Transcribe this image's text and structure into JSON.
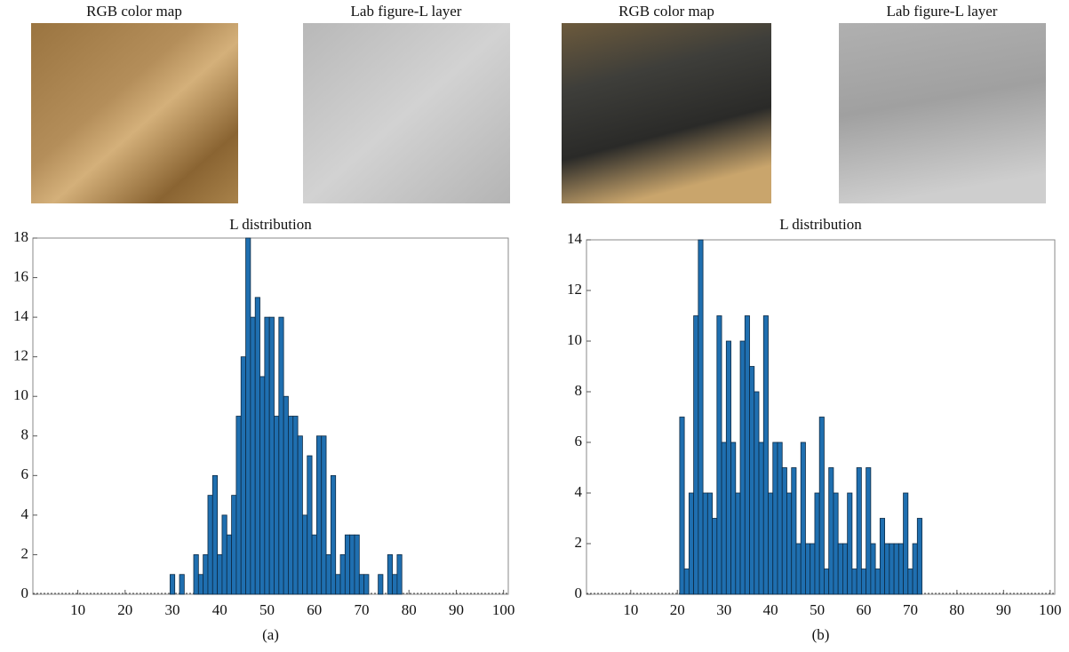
{
  "chart_data": [
    {
      "type": "histogram",
      "title": "L distribution",
      "caption": "(a)",
      "image_titles": [
        "RGB color map",
        "Lab figure-L layer"
      ],
      "bins": [
        29.5,
        30.5,
        31.5,
        32.5,
        33.5,
        34.5,
        35.5,
        36.5,
        37.5,
        38.5,
        39.5,
        40.5,
        41.5,
        42.5,
        43.5,
        44.5,
        45.5,
        46.5,
        47.5,
        48.5,
        49.5,
        50.5,
        51.5,
        52.5,
        53.5,
        54.5,
        55.5,
        56.5,
        57.5,
        58.5,
        59.5,
        60.5,
        61.5,
        62.5,
        63.5,
        64.5,
        65.5,
        66.5,
        67.5,
        68.5,
        69.5,
        70.5,
        71.5,
        72.5,
        73.5,
        74.5,
        75.5,
        76.5,
        77.5,
        78.5
      ],
      "counts": [
        1,
        0,
        1,
        0,
        0,
        2,
        1,
        2,
        5,
        6,
        2,
        4,
        3,
        5,
        9,
        12,
        18,
        14,
        15,
        11,
        14,
        14,
        9,
        14,
        10,
        9,
        9,
        8,
        4,
        7,
        3,
        8,
        8,
        2,
        6,
        1,
        2,
        3,
        3,
        3,
        1,
        1,
        0,
        0,
        1,
        0,
        2,
        1,
        2
      ],
      "color": "#1f6fb0",
      "xlim": [
        0.5,
        101
      ],
      "xticks": [
        10,
        20,
        30,
        40,
        50,
        60,
        70,
        80,
        90,
        100
      ],
      "ylim": [
        0,
        18
      ],
      "yticks": [
        0,
        2,
        4,
        6,
        8,
        10,
        12,
        14,
        16,
        18
      ]
    },
    {
      "type": "histogram",
      "title": "L distribution",
      "caption": "(b)",
      "image_titles": [
        "RGB color map",
        "Lab figure-L layer"
      ],
      "bins": [
        20.5,
        21.5,
        22.5,
        23.5,
        24.5,
        25.5,
        26.5,
        27.5,
        28.5,
        29.5,
        30.5,
        31.5,
        32.5,
        33.5,
        34.5,
        35.5,
        36.5,
        37.5,
        38.5,
        39.5,
        40.5,
        41.5,
        42.5,
        43.5,
        44.5,
        45.5,
        46.5,
        47.5,
        48.5,
        49.5,
        50.5,
        51.5,
        52.5,
        53.5,
        54.5,
        55.5,
        56.5,
        57.5,
        58.5,
        59.5,
        60.5,
        61.5,
        62.5,
        63.5,
        64.5,
        65.5,
        66.5,
        67.5,
        68.5,
        69.5,
        70.5,
        71.5,
        72.5
      ],
      "counts": [
        7,
        1,
        4,
        11,
        14,
        4,
        4,
        3,
        11,
        6,
        10,
        6,
        4,
        10,
        11,
        9,
        8,
        6,
        11,
        4,
        6,
        6,
        5,
        4,
        5,
        2,
        6,
        2,
        2,
        4,
        7,
        1,
        5,
        4,
        2,
        2,
        4,
        1,
        5,
        1,
        5,
        2,
        1,
        3,
        2,
        2,
        2,
        2,
        4,
        1,
        2,
        3
      ],
      "color": "#1f6fb0",
      "xlim": [
        0.5,
        101
      ],
      "xticks": [
        10,
        20,
        30,
        40,
        50,
        60,
        70,
        80,
        90,
        100
      ],
      "ylim": [
        0,
        14
      ],
      "yticks": [
        0,
        2,
        4,
        6,
        8,
        10,
        12,
        14
      ]
    }
  ]
}
